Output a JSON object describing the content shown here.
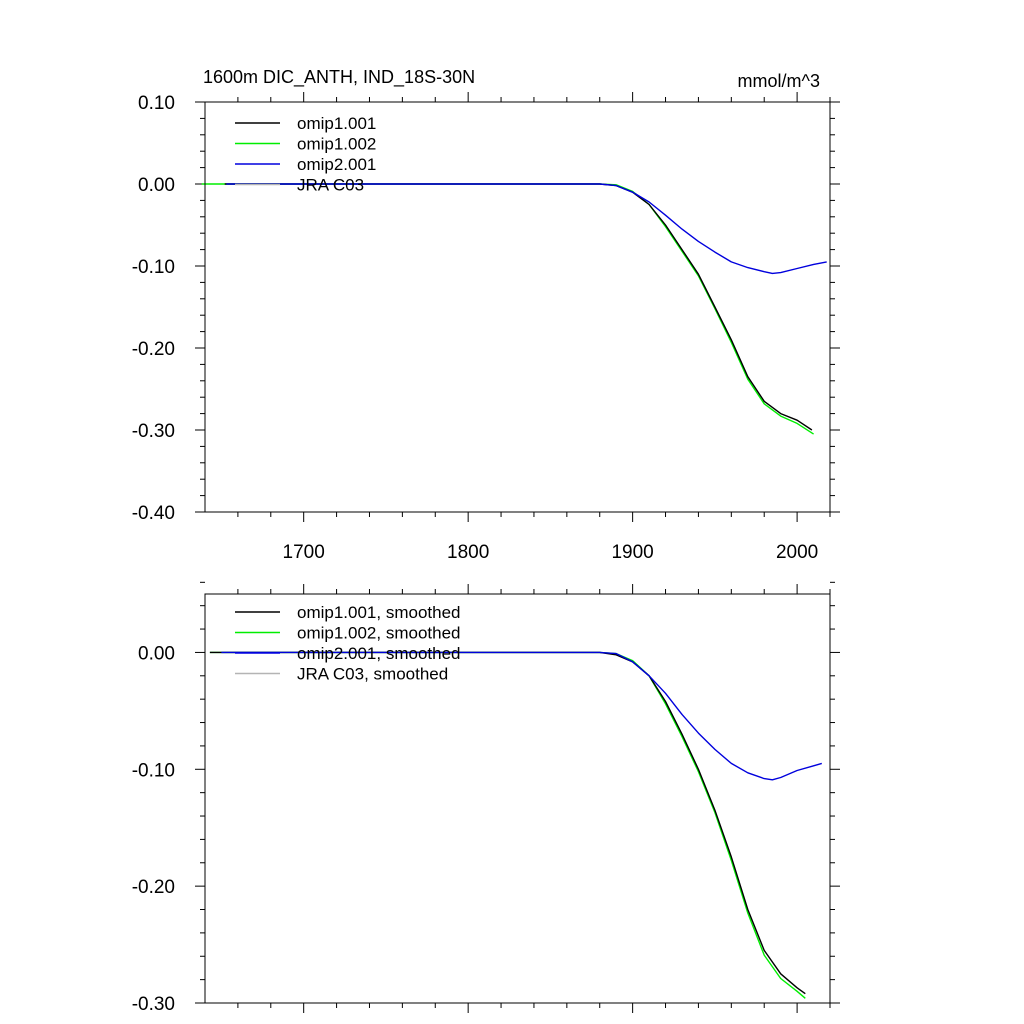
{
  "colors": {
    "omip1_001": "#000000",
    "omip1_002": "#00ee00",
    "omip2_001": "#0000dd",
    "jra_c03": "#b4b4b4",
    "axis": "#000000",
    "background": "#ffffff"
  },
  "chart_data": [
    {
      "type": "line",
      "panel": "top",
      "title": "1600m DIC_ANTH, IND_18S-30N",
      "units": "mmol/m^3",
      "xlim": [
        1640,
        2020
      ],
      "ylim": [
        -0.4,
        0.1
      ],
      "xticks": [
        1700,
        1800,
        1900,
        2000
      ],
      "xtick_labels": [
        "1700",
        "1800",
        "1900",
        "2000"
      ],
      "yticks": [
        0.1,
        0.0,
        -0.1,
        -0.2,
        -0.3,
        -0.4
      ],
      "ytick_labels": [
        "0.10",
        "0.00",
        "-0.10",
        "-0.20",
        "-0.30",
        "-0.40"
      ],
      "legend_position": "top-left",
      "series": [
        {
          "key": "omip1_001",
          "name": "omip1.001",
          "x": [
            1652,
            1700,
            1800,
            1870,
            1880,
            1890,
            1900,
            1910,
            1920,
            1930,
            1940,
            1950,
            1960,
            1970,
            1980,
            1990,
            2000,
            2009
          ],
          "y": [
            0.0,
            0.0,
            0.0,
            0.0,
            0.0,
            -0.002,
            -0.01,
            -0.025,
            -0.05,
            -0.08,
            -0.11,
            -0.15,
            -0.19,
            -0.235,
            -0.265,
            -0.28,
            -0.288,
            -0.3
          ]
        },
        {
          "key": "omip1_002",
          "name": "omip1.002",
          "x": [
            1638,
            1700,
            1800,
            1870,
            1880,
            1890,
            1900,
            1910,
            1920,
            1930,
            1940,
            1950,
            1960,
            1970,
            1980,
            1990,
            2000,
            2010
          ],
          "y": [
            0.0,
            0.0,
            0.0,
            0.0,
            0.0,
            -0.001,
            -0.009,
            -0.025,
            -0.052,
            -0.082,
            -0.112,
            -0.152,
            -0.193,
            -0.238,
            -0.268,
            -0.283,
            -0.292,
            -0.305
          ]
        },
        {
          "key": "omip2_001",
          "name": "omip2.001",
          "x": [
            1653,
            1700,
            1800,
            1870,
            1880,
            1890,
            1900,
            1910,
            1920,
            1930,
            1940,
            1950,
            1960,
            1970,
            1980,
            1985,
            1990,
            2000,
            2010,
            2018
          ],
          "y": [
            0.0,
            0.0,
            0.0,
            0.0,
            0.0,
            -0.002,
            -0.01,
            -0.022,
            -0.038,
            -0.055,
            -0.07,
            -0.083,
            -0.095,
            -0.102,
            -0.107,
            -0.109,
            -0.108,
            -0.103,
            -0.098,
            -0.095
          ]
        },
        {
          "key": "jra_c03",
          "name": "JRA C03",
          "x": [],
          "y": []
        }
      ]
    },
    {
      "type": "line",
      "panel": "bottom",
      "title": "",
      "xlim": [
        1640,
        2020
      ],
      "ylim": [
        -0.3,
        0.05
      ],
      "xticks": [
        1700,
        1800,
        1900,
        2000
      ],
      "xtick_labels": [],
      "yticks": [
        0.0,
        -0.1,
        -0.2,
        -0.3
      ],
      "ytick_labels": [
        "0.00",
        "-0.10",
        "-0.20",
        "-0.30"
      ],
      "legend_position": "top-left",
      "series": [
        {
          "key": "omip1_001",
          "name": "omip1.001, smoothed",
          "x": [
            1643,
            1700,
            1800,
            1870,
            1880,
            1890,
            1900,
            1910,
            1920,
            1930,
            1940,
            1950,
            1960,
            1970,
            1980,
            1990,
            2000,
            2005
          ],
          "y": [
            0.0,
            0.0,
            0.0,
            0.0,
            0.0,
            -0.002,
            -0.008,
            -0.02,
            -0.042,
            -0.07,
            -0.1,
            -0.135,
            -0.175,
            -0.22,
            -0.255,
            -0.275,
            -0.287,
            -0.292
          ]
        },
        {
          "key": "omip1_002",
          "name": "omip1.002, smoothed",
          "x": [
            1643,
            1700,
            1800,
            1870,
            1880,
            1890,
            1900,
            1910,
            1920,
            1930,
            1940,
            1950,
            1960,
            1970,
            1980,
            1990,
            2000,
            2005
          ],
          "y": [
            0.0,
            0.0,
            0.0,
            0.0,
            0.0,
            -0.001,
            -0.007,
            -0.02,
            -0.044,
            -0.072,
            -0.102,
            -0.137,
            -0.178,
            -0.223,
            -0.259,
            -0.279,
            -0.29,
            -0.296
          ]
        },
        {
          "key": "omip2_001",
          "name": "omip2.001, smoothed",
          "x": [
            1650,
            1700,
            1800,
            1870,
            1880,
            1890,
            1900,
            1910,
            1920,
            1930,
            1940,
            1950,
            1960,
            1970,
            1980,
            1985,
            1990,
            2000,
            2010,
            2015
          ],
          "y": [
            0.0,
            0.0,
            0.0,
            0.0,
            0.0,
            -0.001,
            -0.008,
            -0.02,
            -0.035,
            -0.053,
            -0.069,
            -0.083,
            -0.095,
            -0.103,
            -0.108,
            -0.109,
            -0.107,
            -0.101,
            -0.097,
            -0.095
          ]
        },
        {
          "key": "jra_c03",
          "name": "JRA C03, smoothed",
          "x": [],
          "y": []
        }
      ]
    }
  ]
}
